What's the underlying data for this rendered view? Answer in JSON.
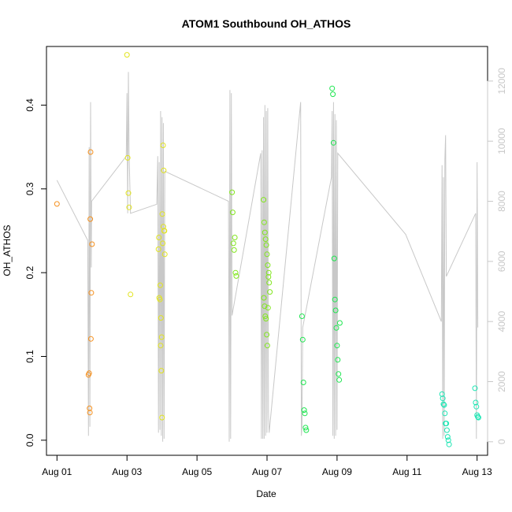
{
  "chart_data": {
    "type": "scatter",
    "title": "ATOM1 Southbound OH_ATHOS",
    "xlabel": "Date",
    "ylabel": "OH_ATHOS",
    "x_ticks": [
      "Aug 01",
      "Aug 03",
      "Aug 05",
      "Aug 07",
      "Aug 09",
      "Aug 11",
      "Aug 13"
    ],
    "x_tick_values": [
      0,
      2,
      4,
      6,
      8,
      10,
      12
    ],
    "xlim": [
      -0.3,
      12.3
    ],
    "ylim": [
      -0.018,
      0.47
    ],
    "y_ticks": [
      0.0,
      0.1,
      0.2,
      0.3,
      0.4
    ],
    "y_tick_labels": [
      "0.0",
      "0.1",
      "0.2",
      "0.3",
      "0.4"
    ],
    "y2lim": [
      -450,
      13150
    ],
    "y2_ticks": [
      0,
      2000,
      4000,
      6000,
      8000,
      10000,
      12000
    ],
    "y2_tick_labels": [
      "0",
      "2000",
      "4000",
      "6000",
      "8000",
      "10000",
      "12000"
    ],
    "altitude_color": "#c8c8c8",
    "axis_color_right": "#c8c8c8",
    "point_groups": [
      {
        "color": "#f5901e",
        "x": [
          0.0,
          0.9,
          0.92,
          0.93,
          0.94,
          0.95,
          0.96,
          0.97,
          0.98,
          1.0
        ],
        "y": [
          0.282,
          0.078,
          0.08,
          0.038,
          0.033,
          0.264,
          0.344,
          0.121,
          0.176,
          0.234
        ]
      },
      {
        "color": "#e2e41e",
        "x": [
          2.0,
          2.02,
          2.04,
          2.06,
          2.1,
          2.9,
          2.92,
          2.94,
          2.96,
          2.98,
          3.0,
          3.02,
          3.04,
          3.06,
          3.08,
          2.95,
          2.97,
          2.99,
          3.01,
          3.03,
          3.05,
          3.07,
          2.91
        ],
        "y": [
          0.46,
          0.337,
          0.295,
          0.278,
          0.174,
          0.228,
          0.17,
          0.168,
          0.113,
          0.083,
          0.027,
          0.235,
          0.255,
          0.25,
          0.222,
          0.185,
          0.146,
          0.123,
          0.27,
          0.352,
          0.322,
          0.25,
          0.242
        ]
      },
      {
        "color": "#82e61e",
        "x": [
          5.0,
          5.02,
          5.04,
          5.06,
          5.08,
          5.1,
          5.12,
          5.9,
          5.92,
          5.94,
          5.96,
          5.98,
          6.0,
          6.02,
          6.04,
          6.06,
          6.08,
          5.91,
          5.93,
          5.95,
          5.97,
          5.99,
          6.01,
          6.03,
          6.05
        ],
        "y": [
          0.296,
          0.272,
          0.235,
          0.227,
          0.242,
          0.2,
          0.196,
          0.287,
          0.26,
          0.248,
          0.24,
          0.233,
          0.222,
          0.209,
          0.195,
          0.188,
          0.177,
          0.17,
          0.16,
          0.148,
          0.145,
          0.126,
          0.113,
          0.158,
          0.2
        ]
      },
      {
        "color": "#1ee650",
        "x": [
          7.0,
          7.02,
          7.04,
          7.06,
          7.08,
          7.1,
          7.12,
          7.86,
          7.88,
          7.9,
          7.92,
          7.94,
          7.96,
          7.98,
          8.0,
          8.02,
          8.04,
          8.06,
          8.08
        ],
        "y": [
          0.148,
          0.12,
          0.069,
          0.036,
          0.032,
          0.015,
          0.012,
          0.42,
          0.413,
          0.355,
          0.217,
          0.168,
          0.155,
          0.134,
          0.113,
          0.096,
          0.079,
          0.072,
          0.14
        ]
      },
      {
        "color": "#1ee6b4",
        "x": [
          11.0,
          11.02,
          11.04,
          11.06,
          11.08,
          11.1,
          11.12,
          11.14,
          11.16,
          11.18,
          11.2,
          11.94,
          11.96,
          11.98,
          12.0,
          12.02,
          12.04
        ],
        "y": [
          0.055,
          0.05,
          0.043,
          0.042,
          0.032,
          0.02,
          0.02,
          0.012,
          0.004,
          0.0,
          -0.005,
          0.062,
          0.045,
          0.04,
          0.03,
          0.028,
          0.027
        ]
      }
    ],
    "altitude_polyline": [
      [
        0.0,
        8700
      ],
      [
        0.88,
        6700
      ],
      [
        0.9,
        200
      ],
      [
        0.92,
        9800
      ],
      [
        0.94,
        500
      ],
      [
        0.96,
        11300
      ],
      [
        0.98,
        5800
      ],
      [
        0.99,
        8000
      ],
      [
        1.98,
        9500
      ],
      [
        2.0,
        11600
      ],
      [
        2.02,
        7600
      ],
      [
        2.04,
        12300
      ],
      [
        2.06,
        9600
      ],
      [
        2.1,
        7600
      ],
      [
        2.85,
        7900
      ],
      [
        2.88,
        9500
      ],
      [
        2.9,
        300
      ],
      [
        2.92,
        9300
      ],
      [
        2.94,
        400
      ],
      [
        2.96,
        11000
      ],
      [
        2.98,
        200
      ],
      [
        3.0,
        10800
      ],
      [
        3.02,
        0
      ],
      [
        3.04,
        10600
      ],
      [
        3.06,
        100
      ],
      [
        3.08,
        9000
      ],
      [
        4.9,
        8000
      ],
      [
        4.92,
        0
      ],
      [
        4.94,
        11700
      ],
      [
        4.96,
        100
      ],
      [
        4.98,
        11600
      ],
      [
        5.0,
        4200
      ],
      [
        5.82,
        9600
      ],
      [
        5.84,
        100
      ],
      [
        5.86,
        9700
      ],
      [
        5.88,
        100
      ],
      [
        5.9,
        10800
      ],
      [
        5.92,
        100
      ],
      [
        5.94,
        11200
      ],
      [
        5.96,
        200
      ],
      [
        5.98,
        11000
      ],
      [
        6.0,
        300
      ],
      [
        6.02,
        11100
      ],
      [
        6.04,
        1000
      ],
      [
        6.06,
        300
      ],
      [
        6.96,
        11300
      ],
      [
        6.98,
        200
      ],
      [
        7.0,
        500
      ],
      [
        7.02,
        3800
      ],
      [
        7.84,
        8800
      ],
      [
        7.86,
        11000
      ],
      [
        7.88,
        200
      ],
      [
        7.9,
        11300
      ],
      [
        7.92,
        100
      ],
      [
        7.94,
        10900
      ],
      [
        7.96,
        200
      ],
      [
        7.98,
        10700
      ],
      [
        8.0,
        400
      ],
      [
        8.02,
        9600
      ],
      [
        9.96,
        6900
      ],
      [
        10.98,
        4000
      ],
      [
        11.0,
        9200
      ],
      [
        11.02,
        100
      ],
      [
        11.04,
        8800
      ],
      [
        11.06,
        200
      ],
      [
        11.08,
        9400
      ],
      [
        11.1,
        10200
      ],
      [
        11.12,
        5500
      ],
      [
        11.96,
        7600
      ],
      [
        11.98,
        100
      ],
      [
        12.0,
        9300
      ],
      [
        12.02,
        3800
      ]
    ]
  }
}
